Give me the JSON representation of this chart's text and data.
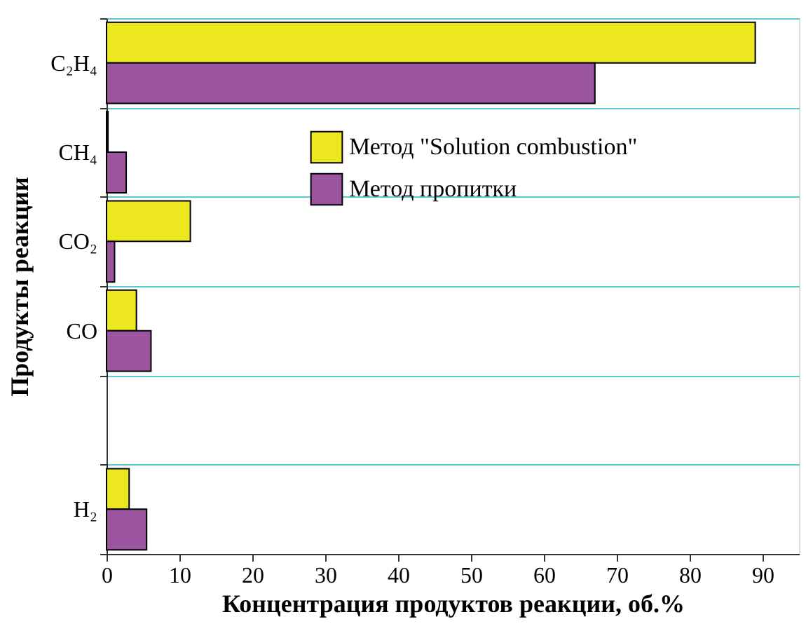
{
  "chart_data": {
    "type": "bar",
    "orientation": "horizontal",
    "categories": [
      "C₂H₄",
      "CH₄",
      "CO₂",
      "CO",
      null,
      "H₂"
    ],
    "series": [
      {
        "name": "Метод \"Solution combustion\"",
        "color": "#ece71e",
        "values": [
          89,
          0.2,
          11.5,
          4.1,
          null,
          3.1
        ]
      },
      {
        "name": "Метод пропитки",
        "color": "#9b559f",
        "values": [
          67,
          2.7,
          1.1,
          6.1,
          null,
          5.5
        ]
      }
    ],
    "xlabel": "Концентрация продуктов реакции, об.%",
    "ylabel": "Продукты реакции",
    "xlim": [
      0,
      95
    ],
    "xticks": [
      0,
      10,
      20,
      30,
      40,
      50,
      60,
      70,
      80,
      90
    ],
    "grid": "y",
    "legend": "top right"
  }
}
